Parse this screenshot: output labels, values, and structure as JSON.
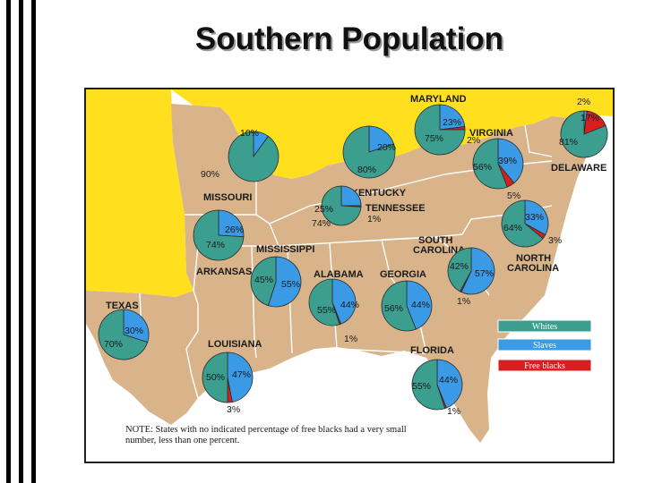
{
  "title": "Southern Population",
  "colors": {
    "whites": "#3b9e8f",
    "slaves": "#3a9ae6",
    "free_blacks": "#d81e1e",
    "land": "#d9b48a",
    "gulf": "#ffffff",
    "border": "#ffffff"
  },
  "states": {
    "maryland": "MARYLAND",
    "virginia": "VIRGINIA",
    "delaware": "DELAWARE",
    "missouri": "MISSOURI",
    "kentucky": "KENTUCKY",
    "tennessee": "TENNESSEE",
    "south_carolina_1": "SOUTH",
    "south_carolina_2": "CAROLINA",
    "north_carolina_1": "NORTH",
    "north_carolina_2": "CAROLINA",
    "mississippi": "MISSISSIPPI",
    "arkansas": "ARKANSAS",
    "alabama": "ALABAMA",
    "georgia": "GEORGIA",
    "texas": "TEXAS",
    "louisiana": "LOUISIANA",
    "florida": "FLORIDA"
  },
  "pies": [
    {
      "name": "missouri",
      "whites": 90,
      "slaves": 10,
      "free": 0,
      "labels": [
        "10%",
        "90%"
      ]
    },
    {
      "name": "kentucky",
      "whites": 80,
      "slaves": 20,
      "free": 0,
      "labels": [
        "20%",
        "80%"
      ]
    },
    {
      "name": "maryland",
      "whites": 75,
      "slaves": 23,
      "free": 2,
      "labels": [
        "23%",
        "75%",
        "2%"
      ]
    },
    {
      "name": "delaware",
      "whites": 81,
      "slaves": 2,
      "free": 17,
      "labels": [
        "2%",
        "17%",
        "81%"
      ]
    },
    {
      "name": "virginia",
      "whites": 56,
      "slaves": 39,
      "free": 5,
      "labels": [
        "56%",
        "39%",
        "5%"
      ]
    },
    {
      "name": "tennessee",
      "whites": 74,
      "slaves": 25,
      "free": 1,
      "labels": [
        "25%",
        "74%",
        "1%"
      ]
    },
    {
      "name": "north-carolina",
      "whites": 64,
      "slaves": 33,
      "free": 3,
      "labels": [
        "33%",
        "64%",
        "3%"
      ]
    },
    {
      "name": "arkansas",
      "whites": 74,
      "slaves": 26,
      "free": 0,
      "labels": [
        "26%",
        "74%"
      ]
    },
    {
      "name": "mississippi",
      "whites": 45,
      "slaves": 55,
      "free": 0,
      "labels": [
        "45%",
        "55%"
      ]
    },
    {
      "name": "south-carolina",
      "whites": 42,
      "slaves": 57,
      "free": 1,
      "labels": [
        "42%",
        "57%",
        "1%"
      ]
    },
    {
      "name": "alabama",
      "whites": 55,
      "slaves": 44,
      "free": 1,
      "labels": [
        "55%",
        "44%",
        "1%"
      ]
    },
    {
      "name": "georgia",
      "whites": 56,
      "slaves": 44,
      "free": 0,
      "labels": [
        "56%",
        "44%"
      ]
    },
    {
      "name": "texas",
      "whites": 70,
      "slaves": 30,
      "free": 0,
      "labels": [
        "30%",
        "70%"
      ]
    },
    {
      "name": "louisiana",
      "whites": 50,
      "slaves": 47,
      "free": 3,
      "labels": [
        "50%",
        "47%",
        "3%"
      ]
    },
    {
      "name": "florida",
      "whites": 55,
      "slaves": 44,
      "free": 1,
      "labels": [
        "55%",
        "44%",
        "1%"
      ]
    }
  ],
  "legend": {
    "whites": "Whites",
    "slaves": "Slaves",
    "free_blacks": "Free blacks"
  },
  "note": {
    "line1": "NOTE: States with no indicated percentage of free blacks had a very small",
    "line2": "number, less than one percent."
  }
}
